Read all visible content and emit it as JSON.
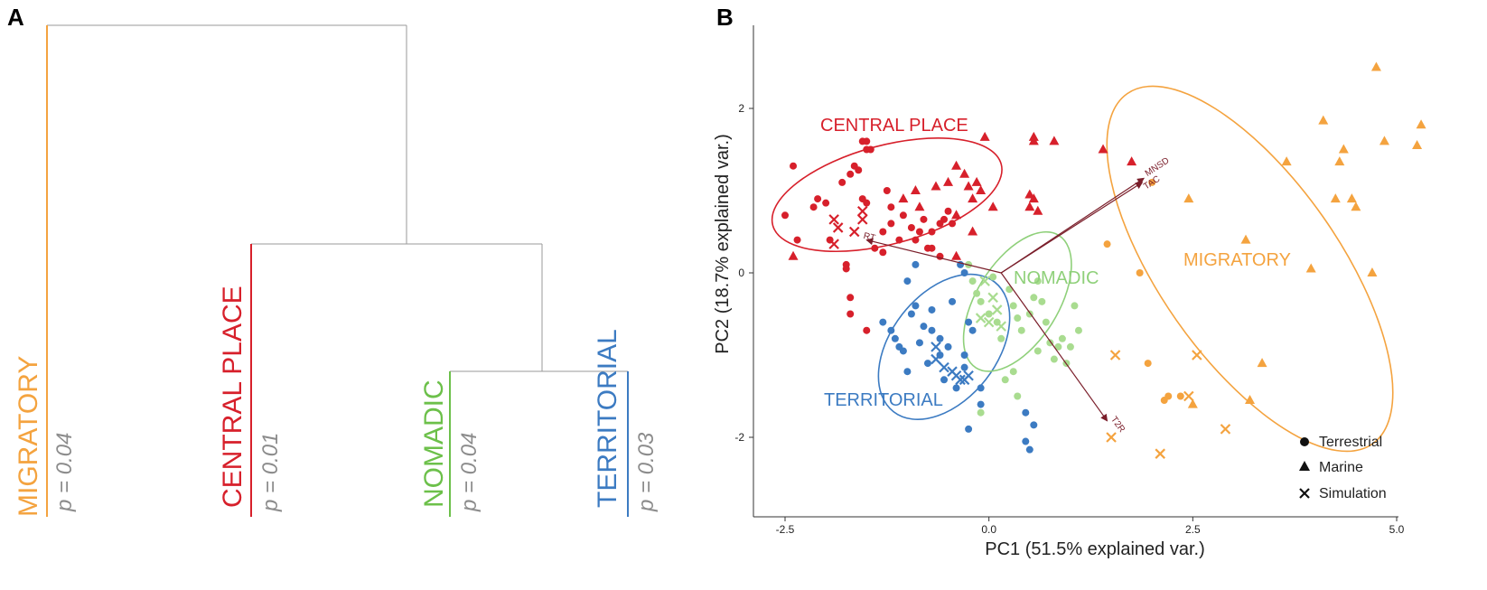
{
  "panel_a": {
    "letter": "A",
    "clades": [
      {
        "name": "MIGRATORY",
        "p_text": "p = 0.04",
        "color": "#f4a33f"
      },
      {
        "name": "CENTRAL PLACE",
        "p_text": "p = 0.01",
        "color": "#d7202b"
      },
      {
        "name": "NOMADIC",
        "p_text": "p = 0.04",
        "color": "#6cc04a"
      },
      {
        "name": "TERRITORIAL",
        "p_text": "p = 0.03",
        "color": "#3c7bc2"
      }
    ]
  },
  "panel_b": {
    "letter": "B",
    "group_labels": {
      "central_place": "CENTRAL PLACE",
      "nomadic": "NOMADIC",
      "migratory": "MIGRATORY",
      "territorial": "TERRITORIAL"
    },
    "legend": {
      "terrestrial": "Terrestrial",
      "marine": "Marine",
      "simulation": "Simulation"
    }
  },
  "chart_data": [
    {
      "type": "dendrogram",
      "leaves": [
        "MIGRATORY",
        "CENTRAL PLACE",
        "NOMADIC",
        "TERRITORIAL"
      ],
      "merges": [
        [
          "NOMADIC",
          "TERRITORIAL"
        ],
        [
          "CENTRAL PLACE",
          "NOMADIC+TERRITORIAL"
        ],
        [
          "MIGRATORY",
          "CENTRAL PLACE+NOMADIC+TERRITORIAL"
        ]
      ],
      "p_values": {
        "MIGRATORY": 0.04,
        "CENTRAL PLACE": 0.01,
        "NOMADIC": 0.04,
        "TERRITORIAL": 0.03
      }
    },
    {
      "type": "scatter",
      "xlabel": "PC1 (51.5% explained var.)",
      "ylabel": "PC2 (18.7% explained var.)",
      "xlim": [
        -2.8,
        5.0
      ],
      "ylim": [
        -3.0,
        3.1
      ],
      "xticks": [
        -2.5,
        0.0,
        2.5,
        5.0
      ],
      "yticks": [
        -2,
        0,
        2
      ],
      "xtick_labels": [
        "-2.5",
        "0.0",
        "2.5",
        "5.0"
      ],
      "ytick_labels": [
        "-2",
        "0",
        "2"
      ],
      "colors": {
        "central_place": "#d7202b",
        "nomadic": "#a9dc90",
        "migratory": "#f4a33f",
        "territorial": "#3c7bc2"
      },
      "ellipse_colors": {
        "central_place": "#d7202b",
        "nomadic": "#8fd07a",
        "migratory": "#f4a33f",
        "territorial": "#3c7bc2"
      },
      "series": [
        {
          "group": "central_place",
          "shape": "circle",
          "points": [
            [
              -2.4,
              1.3
            ],
            [
              -2.5,
              0.7
            ],
            [
              -2.35,
              0.4
            ],
            [
              -2.1,
              0.9
            ],
            [
              -2.15,
              0.8
            ],
            [
              -2.0,
              0.85
            ],
            [
              -1.95,
              0.4
            ],
            [
              -1.8,
              1.1
            ],
            [
              -1.7,
              1.2
            ],
            [
              -1.65,
              1.3
            ],
            [
              -1.6,
              1.25
            ],
            [
              -1.55,
              1.6
            ],
            [
              -1.5,
              1.6
            ],
            [
              -1.5,
              1.5
            ],
            [
              -1.45,
              1.5
            ],
            [
              -1.55,
              0.9
            ],
            [
              -1.5,
              0.85
            ],
            [
              -1.4,
              0.3
            ],
            [
              -1.3,
              0.25
            ],
            [
              -1.3,
              0.5
            ],
            [
              -1.25,
              1.0
            ],
            [
              -1.2,
              0.8
            ],
            [
              -1.2,
              0.6
            ],
            [
              -1.1,
              0.4
            ],
            [
              -1.05,
              0.7
            ],
            [
              -0.95,
              0.55
            ],
            [
              -0.9,
              0.4
            ],
            [
              -0.85,
              0.5
            ],
            [
              -0.8,
              0.65
            ],
            [
              -0.75,
              0.3
            ],
            [
              -0.7,
              0.5
            ],
            [
              -0.6,
              0.6
            ],
            [
              -0.55,
              0.65
            ],
            [
              -0.5,
              0.75
            ],
            [
              -0.45,
              0.6
            ],
            [
              -0.6,
              0.2
            ],
            [
              -0.7,
              0.3
            ],
            [
              -1.75,
              0.1
            ],
            [
              -1.75,
              0.05
            ],
            [
              -1.7,
              -0.3
            ],
            [
              -1.7,
              -0.5
            ],
            [
              -1.5,
              -0.7
            ]
          ]
        },
        {
          "group": "central_place",
          "shape": "triangle",
          "points": [
            [
              -2.4,
              0.2
            ],
            [
              -1.05,
              0.9
            ],
            [
              -0.9,
              1.0
            ],
            [
              -0.85,
              0.8
            ],
            [
              -0.65,
              1.05
            ],
            [
              -0.5,
              1.1
            ],
            [
              -0.4,
              1.3
            ],
            [
              -0.4,
              0.7
            ],
            [
              -0.3,
              1.2
            ],
            [
              -0.25,
              1.05
            ],
            [
              -0.2,
              0.9
            ],
            [
              -0.15,
              1.1
            ],
            [
              -0.1,
              1.0
            ],
            [
              -0.05,
              1.65
            ],
            [
              0.05,
              0.8
            ],
            [
              0.5,
              0.95
            ],
            [
              0.5,
              0.8
            ],
            [
              0.55,
              0.9
            ],
            [
              0.55,
              1.6
            ],
            [
              0.6,
              0.75
            ],
            [
              0.55,
              1.65
            ],
            [
              0.8,
              1.6
            ],
            [
              1.4,
              1.5
            ],
            [
              1.75,
              1.35
            ],
            [
              -0.4,
              0.2
            ],
            [
              -0.2,
              0.5
            ]
          ]
        },
        {
          "group": "central_place",
          "shape": "cross",
          "points": [
            [
              -1.9,
              0.65
            ],
            [
              -1.85,
              0.55
            ],
            [
              -1.65,
              0.5
            ],
            [
              -1.55,
              0.75
            ],
            [
              -1.55,
              0.65
            ],
            [
              -1.9,
              0.35
            ]
          ]
        },
        {
          "group": "territorial",
          "shape": "circle",
          "points": [
            [
              -1.3,
              -0.6
            ],
            [
              -1.2,
              -0.7
            ],
            [
              -1.15,
              -0.8
            ],
            [
              -1.1,
              -0.9
            ],
            [
              -1.05,
              -0.95
            ],
            [
              -1.0,
              -1.2
            ],
            [
              -0.95,
              -0.5
            ],
            [
              -0.9,
              -0.4
            ],
            [
              -0.85,
              -0.85
            ],
            [
              -0.8,
              -0.65
            ],
            [
              -0.75,
              -1.1
            ],
            [
              -0.7,
              -0.45
            ],
            [
              -0.7,
              -0.7
            ],
            [
              -0.6,
              -0.8
            ],
            [
              -0.6,
              -1.0
            ],
            [
              -0.55,
              -1.3
            ],
            [
              -0.5,
              -0.9
            ],
            [
              -0.45,
              -0.35
            ],
            [
              -0.4,
              -1.4
            ],
            [
              -0.3,
              -1.0
            ],
            [
              -0.3,
              -1.15
            ],
            [
              -0.25,
              -0.6
            ],
            [
              -0.2,
              -0.7
            ],
            [
              -0.25,
              -1.9
            ],
            [
              -0.1,
              -1.4
            ],
            [
              -0.1,
              -1.6
            ],
            [
              0.45,
              -1.7
            ],
            [
              0.45,
              -2.05
            ],
            [
              0.5,
              -2.15
            ],
            [
              0.55,
              -1.85
            ],
            [
              -0.9,
              0.1
            ],
            [
              -1.0,
              -0.1
            ],
            [
              -0.35,
              0.1
            ],
            [
              -0.3,
              0.0
            ]
          ]
        },
        {
          "group": "territorial",
          "shape": "cross",
          "points": [
            [
              -0.65,
              -0.9
            ],
            [
              -0.65,
              -1.05
            ],
            [
              -0.55,
              -1.15
            ],
            [
              -0.45,
              -1.2
            ],
            [
              -0.4,
              -1.25
            ],
            [
              -0.35,
              -1.3
            ],
            [
              -0.3,
              -1.3
            ],
            [
              -0.25,
              -1.25
            ]
          ]
        },
        {
          "group": "nomadic",
          "shape": "circle",
          "points": [
            [
              -0.25,
              0.1
            ],
            [
              -0.2,
              -0.1
            ],
            [
              -0.15,
              -0.25
            ],
            [
              -0.1,
              -0.35
            ],
            [
              0.0,
              -0.5
            ],
            [
              0.05,
              -0.05
            ],
            [
              0.1,
              -0.6
            ],
            [
              0.15,
              -0.8
            ],
            [
              0.25,
              -0.2
            ],
            [
              0.3,
              -0.4
            ],
            [
              0.35,
              -0.55
            ],
            [
              0.4,
              -0.7
            ],
            [
              0.5,
              -0.5
            ],
            [
              0.55,
              -0.3
            ],
            [
              0.6,
              -0.1
            ],
            [
              0.65,
              -0.35
            ],
            [
              0.7,
              -0.6
            ],
            [
              0.75,
              -0.85
            ],
            [
              0.8,
              -1.05
            ],
            [
              0.85,
              -0.9
            ],
            [
              0.9,
              -0.8
            ],
            [
              0.95,
              -1.1
            ],
            [
              1.0,
              -0.9
            ],
            [
              1.05,
              -0.4
            ],
            [
              1.1,
              -0.7
            ],
            [
              0.3,
              -1.2
            ],
            [
              0.35,
              -1.5
            ],
            [
              -0.1,
              -1.7
            ],
            [
              0.2,
              -1.3
            ],
            [
              0.6,
              -0.95
            ]
          ]
        },
        {
          "group": "nomadic",
          "shape": "cross",
          "points": [
            [
              -0.05,
              -0.1
            ],
            [
              0.05,
              -0.3
            ],
            [
              0.1,
              -0.45
            ],
            [
              0.0,
              -0.6
            ],
            [
              -0.1,
              -0.55
            ],
            [
              0.15,
              -0.65
            ]
          ]
        },
        {
          "group": "migratory",
          "shape": "circle",
          "points": [
            [
              1.45,
              0.35
            ],
            [
              1.85,
              0.0
            ],
            [
              2.0,
              1.1
            ],
            [
              1.95,
              -1.1
            ],
            [
              2.2,
              -1.5
            ],
            [
              2.35,
              -1.5
            ],
            [
              2.15,
              -1.55
            ]
          ]
        },
        {
          "group": "migratory",
          "shape": "triangle",
          "points": [
            [
              2.45,
              0.9
            ],
            [
              3.15,
              0.4
            ],
            [
              3.35,
              -1.1
            ],
            [
              3.2,
              -1.55
            ],
            [
              3.65,
              1.35
            ],
            [
              3.95,
              0.05
            ],
            [
              4.1,
              1.85
            ],
            [
              4.3,
              1.35
            ],
            [
              4.35,
              1.5
            ],
            [
              4.45,
              0.9
            ],
            [
              4.5,
              0.8
            ],
            [
              4.7,
              0.0
            ],
            [
              4.75,
              2.5
            ],
            [
              4.85,
              1.6
            ],
            [
              5.25,
              1.55
            ],
            [
              5.3,
              1.8
            ],
            [
              4.25,
              0.9
            ],
            [
              2.5,
              -1.6
            ]
          ]
        },
        {
          "group": "migratory",
          "shape": "cross",
          "points": [
            [
              1.55,
              -1.0
            ],
            [
              1.5,
              -2.0
            ],
            [
              2.1,
              -2.2
            ],
            [
              2.45,
              -1.5
            ],
            [
              2.55,
              -1.0
            ],
            [
              2.9,
              -1.9
            ]
          ]
        }
      ],
      "ellipses": [
        {
          "group": "central_place",
          "cx": -1.25,
          "cy": 0.95,
          "rx": 1.45,
          "ry": 0.6,
          "angle_deg": -15
        },
        {
          "group": "territorial",
          "cx": -0.55,
          "cy": -0.9,
          "rx": 0.65,
          "ry": 1.0,
          "angle_deg": 38
        },
        {
          "group": "nomadic",
          "cx": 0.35,
          "cy": -0.35,
          "rx": 0.5,
          "ry": 0.95,
          "angle_deg": 32
        },
        {
          "group": "migratory",
          "cx": 3.2,
          "cy": 0.05,
          "rx": 1.1,
          "ry": 2.6,
          "angle_deg": -35
        }
      ],
      "loadings": [
        {
          "label": "MNSD",
          "x": 1.9,
          "y": 1.15
        },
        {
          "label": "TAC",
          "x": 1.88,
          "y": 1.1
        },
        {
          "label": "RT",
          "x": -1.5,
          "y": 0.4
        },
        {
          "label": "T2R",
          "x": 1.45,
          "y": -1.8
        }
      ],
      "loading_origin": [
        0.15,
        0.0
      ]
    }
  ]
}
